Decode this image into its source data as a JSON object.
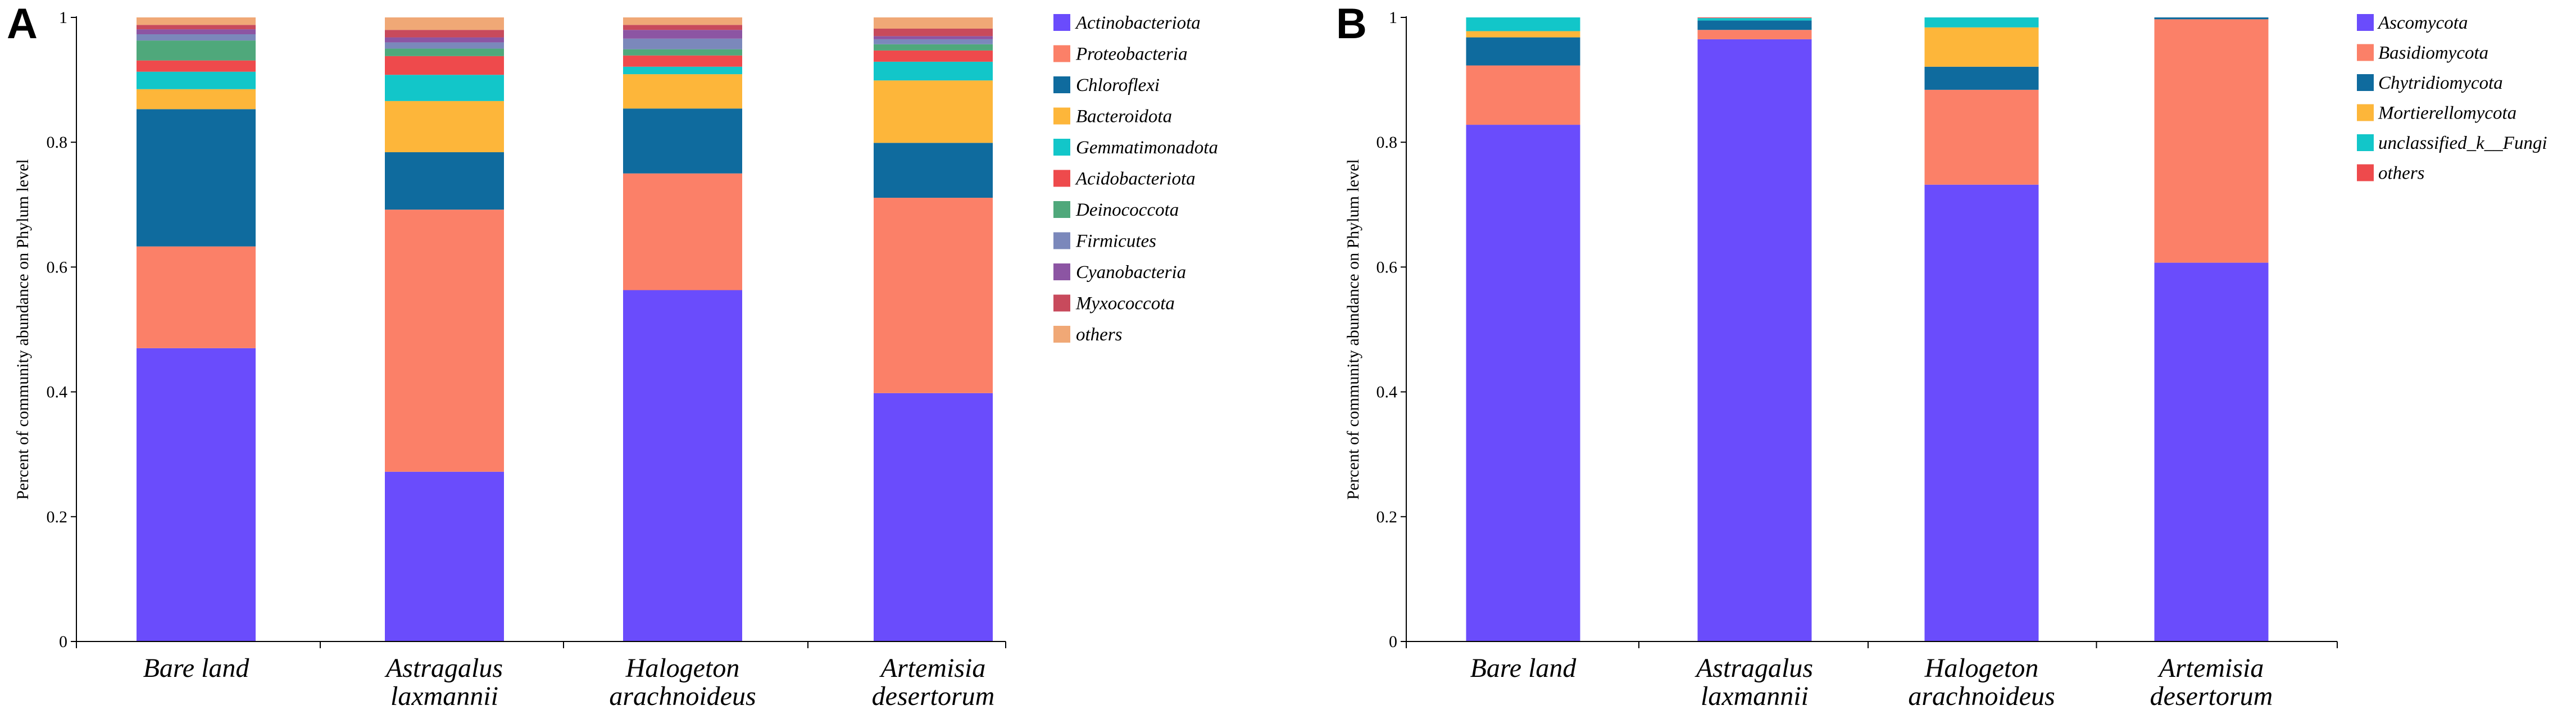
{
  "chart_data": [
    {
      "panel": "A",
      "type": "bar",
      "stacked": true,
      "ylabel": "Percent of community abundance on Phylum level",
      "xlabel": "",
      "ylim": [
        0,
        1
      ],
      "yticks": [
        "0",
        "0.2",
        "0.4",
        "0.6",
        "0.8",
        "1"
      ],
      "legend_position": "right",
      "categories": [
        [
          "Bare land"
        ],
        [
          "Astragalus",
          "laxmannii"
        ],
        [
          "Halogeton",
          "arachnoideus"
        ],
        [
          "Artemisia",
          "desertorum"
        ]
      ],
      "series": [
        {
          "name": "Actinobacteriota",
          "color": "#6a4cfc",
          "values": [
            0.47,
            0.272,
            0.563,
            0.398
          ]
        },
        {
          "name": "Proteobacteria",
          "color": "#fb8068",
          "values": [
            0.163,
            0.42,
            0.187,
            0.313
          ]
        },
        {
          "name": "Chloroflexi",
          "color": "#0f6b9e",
          "values": [
            0.22,
            0.092,
            0.104,
            0.088
          ]
        },
        {
          "name": "Bacteroidota",
          "color": "#fdb63a",
          "values": [
            0.032,
            0.082,
            0.055,
            0.1
          ]
        },
        {
          "name": "Gemmatimonadota",
          "color": "#12c6c9",
          "values": [
            0.028,
            0.042,
            0.012,
            0.03
          ]
        },
        {
          "name": "Acidobacteriota",
          "color": "#ee4a4c",
          "values": [
            0.018,
            0.03,
            0.018,
            0.018
          ]
        },
        {
          "name": "Deinococcota",
          "color": "#4fa87b",
          "values": [
            0.032,
            0.012,
            0.01,
            0.01
          ]
        },
        {
          "name": "Firmicutes",
          "color": "#7b88bb",
          "values": [
            0.01,
            0.01,
            0.017,
            0.008
          ]
        },
        {
          "name": "Cyanobacteria",
          "color": "#8c55a3",
          "values": [
            0.008,
            0.008,
            0.014,
            0.005
          ]
        },
        {
          "name": "Myxococcota",
          "color": "#c84a5c",
          "values": [
            0.007,
            0.012,
            0.008,
            0.012
          ]
        },
        {
          "name": "others",
          "color": "#f0a876",
          "values": [
            0.012,
            0.02,
            0.012,
            0.018
          ]
        }
      ]
    },
    {
      "panel": "B",
      "type": "bar",
      "stacked": true,
      "ylabel": "Percent of community abundance on Phylum level",
      "xlabel": "",
      "ylim": [
        0,
        1
      ],
      "yticks": [
        "0",
        "0.2",
        "0.4",
        "0.6",
        "0.8",
        "1"
      ],
      "legend_position": "right",
      "categories": [
        [
          "Bare land"
        ],
        [
          "Astragalus",
          "laxmannii"
        ],
        [
          "Halogeton",
          "arachnoideus"
        ],
        [
          "Artemisia",
          "desertorum"
        ]
      ],
      "series": [
        {
          "name": "Ascomycota",
          "color": "#6a4cfc",
          "values": [
            0.828,
            0.965,
            0.732,
            0.607
          ]
        },
        {
          "name": "Basidiomycota",
          "color": "#fb8068",
          "values": [
            0.095,
            0.015,
            0.152,
            0.39
          ]
        },
        {
          "name": "Chytridiomycota",
          "color": "#0f6b9e",
          "values": [
            0.045,
            0.015,
            0.037,
            0.003
          ]
        },
        {
          "name": "Mortierellomycota",
          "color": "#fdb63a",
          "values": [
            0.01,
            0.0,
            0.063,
            0.0
          ]
        },
        {
          "name": "unclassified_k__Fungi",
          "color": "#12c6c9",
          "values": [
            0.022,
            0.004,
            0.016,
            0.0
          ]
        },
        {
          "name": "others",
          "color": "#ee4a4c",
          "values": [
            0.0,
            0.001,
            0.0,
            0.0
          ]
        }
      ]
    }
  ]
}
